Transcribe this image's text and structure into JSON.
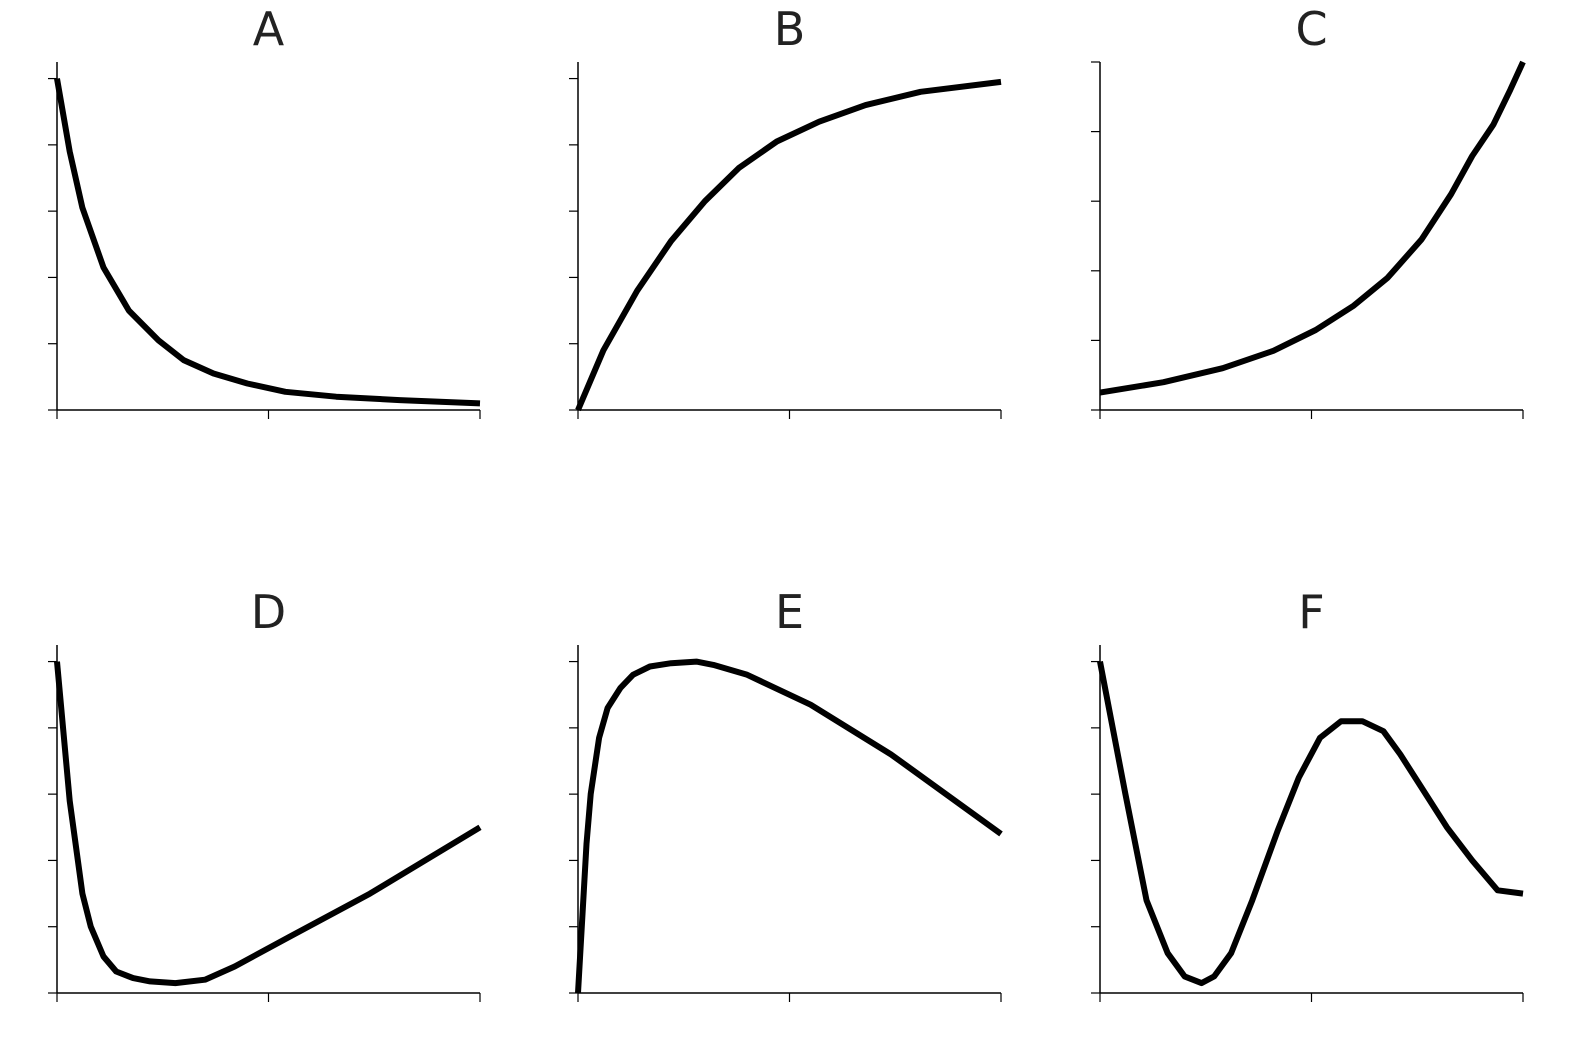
{
  "colors": {
    "line": "#000000",
    "axis": "#000000",
    "title": "#222222",
    "background": "#ffffff"
  },
  "chart_data": [
    {
      "title": "A",
      "type": "line",
      "xlim": [
        0,
        1
      ],
      "ylim": [
        0,
        1.05
      ],
      "x": [
        0.0,
        0.03,
        0.06,
        0.11,
        0.17,
        0.24,
        0.3,
        0.37,
        0.45,
        0.54,
        0.66,
        0.81,
        1.0
      ],
      "y": [
        1.0,
        0.78,
        0.61,
        0.43,
        0.3,
        0.21,
        0.15,
        0.11,
        0.08,
        0.055,
        0.04,
        0.03,
        0.02
      ],
      "xticks": [
        0,
        0.5,
        1
      ],
      "yticks": [
        0,
        0.2,
        0.4,
        0.6,
        0.8,
        1.0
      ]
    },
    {
      "title": "B",
      "type": "line",
      "xlim": [
        0,
        1
      ],
      "ylim": [
        0,
        1.05
      ],
      "x": [
        0.0,
        0.06,
        0.14,
        0.22,
        0.3,
        0.38,
        0.47,
        0.57,
        0.68,
        0.81,
        1.0
      ],
      "y": [
        0.0,
        0.18,
        0.36,
        0.51,
        0.63,
        0.73,
        0.81,
        0.87,
        0.92,
        0.96,
        0.99
      ],
      "xticks": [
        0,
        0.5,
        1
      ],
      "yticks": [
        0,
        0.2,
        0.4,
        0.6,
        0.8,
        1.0
      ]
    },
    {
      "title": "C",
      "type": "line",
      "xlim": [
        0,
        1
      ],
      "ylim": [
        0,
        1.0
      ],
      "x": [
        0.0,
        0.15,
        0.29,
        0.41,
        0.51,
        0.6,
        0.68,
        0.76,
        0.83,
        0.88,
        0.93,
        0.97,
        1.0
      ],
      "y": [
        0.05,
        0.08,
        0.12,
        0.17,
        0.23,
        0.3,
        0.38,
        0.49,
        0.62,
        0.73,
        0.82,
        0.92,
        1.0
      ],
      "xticks": [
        0,
        0.5,
        1
      ],
      "yticks": [
        0,
        0.2,
        0.4,
        0.6,
        0.8,
        1.0
      ]
    },
    {
      "title": "D",
      "type": "line",
      "xlim": [
        0,
        1
      ],
      "ylim": [
        0,
        1.05
      ],
      "x": [
        0.0,
        0.03,
        0.06,
        0.08,
        0.11,
        0.14,
        0.18,
        0.22,
        0.28,
        0.35,
        0.42,
        0.55,
        0.74,
        1.0
      ],
      "y": [
        1.0,
        0.58,
        0.3,
        0.2,
        0.11,
        0.065,
        0.045,
        0.035,
        0.03,
        0.04,
        0.08,
        0.17,
        0.3,
        0.5
      ],
      "xticks": [
        0,
        0.5,
        1
      ],
      "yticks": [
        0,
        0.2,
        0.4,
        0.6,
        0.8,
        1.0
      ]
    },
    {
      "title": "E",
      "type": "line",
      "xlim": [
        0,
        1
      ],
      "ylim": [
        0,
        1.05
      ],
      "x": [
        0.0,
        0.02,
        0.03,
        0.05,
        0.07,
        0.1,
        0.13,
        0.17,
        0.22,
        0.28,
        0.32,
        0.4,
        0.55,
        0.74,
        1.0
      ],
      "y": [
        0.0,
        0.45,
        0.6,
        0.77,
        0.86,
        0.92,
        0.96,
        0.985,
        0.995,
        1.0,
        0.99,
        0.96,
        0.87,
        0.72,
        0.48
      ],
      "xticks": [
        0,
        0.5,
        1
      ],
      "yticks": [
        0,
        0.2,
        0.4,
        0.6,
        0.8,
        1.0
      ]
    },
    {
      "title": "F",
      "type": "line",
      "xlim": [
        0,
        1
      ],
      "ylim": [
        0,
        1.05
      ],
      "x": [
        0.0,
        0.06,
        0.11,
        0.16,
        0.2,
        0.24,
        0.27,
        0.31,
        0.36,
        0.42,
        0.47,
        0.52,
        0.57,
        0.62,
        0.67,
        0.71,
        0.76,
        0.82,
        0.88,
        0.94,
        1.0
      ],
      "y": [
        1.0,
        0.6,
        0.28,
        0.12,
        0.05,
        0.03,
        0.05,
        0.12,
        0.28,
        0.49,
        0.65,
        0.77,
        0.82,
        0.82,
        0.79,
        0.72,
        0.62,
        0.5,
        0.4,
        0.31,
        0.3
      ],
      "xticks": [
        0,
        0.5,
        1
      ],
      "yticks": [
        0,
        0.2,
        0.4,
        0.6,
        0.8,
        1.0
      ]
    }
  ]
}
